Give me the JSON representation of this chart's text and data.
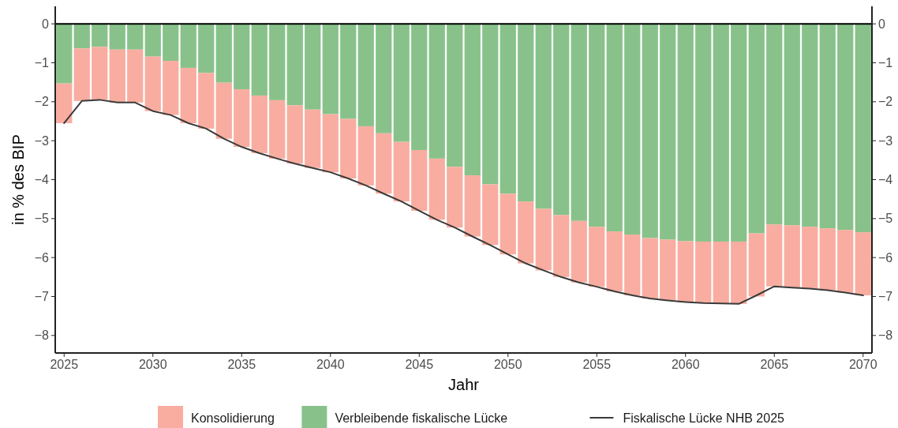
{
  "chart_data": {
    "type": "bar",
    "stacked": true,
    "xlabel": "Jahr",
    "ylabel": "in % des BIP",
    "x": [
      2025,
      2026,
      2027,
      2028,
      2029,
      2030,
      2031,
      2032,
      2033,
      2034,
      2035,
      2036,
      2037,
      2038,
      2039,
      2040,
      2041,
      2042,
      2043,
      2044,
      2045,
      2046,
      2047,
      2048,
      2049,
      2050,
      2051,
      2052,
      2053,
      2054,
      2055,
      2056,
      2057,
      2058,
      2059,
      2060,
      2061,
      2062,
      2063,
      2064,
      2065,
      2066,
      2067,
      2068,
      2069,
      2070
    ],
    "series": [
      {
        "name": "Verbleibende fiskalische Lücke",
        "color": "#88c28a",
        "values": [
          -1.53,
          -0.63,
          -0.59,
          -0.66,
          -0.66,
          -0.84,
          -0.95,
          -1.13,
          -1.26,
          -1.51,
          -1.68,
          -1.84,
          -1.96,
          -2.09,
          -2.2,
          -2.32,
          -2.44,
          -2.63,
          -2.81,
          -3.03,
          -3.24,
          -3.46,
          -3.67,
          -3.89,
          -4.12,
          -4.36,
          -4.56,
          -4.75,
          -4.91,
          -5.06,
          -5.21,
          -5.33,
          -5.41,
          -5.5,
          -5.54,
          -5.58,
          -5.59,
          -5.59,
          -5.59,
          -5.38,
          -5.15,
          -5.17,
          -5.21,
          -5.25,
          -5.29,
          -5.35
        ]
      },
      {
        "name": "Konsolidierung",
        "color": "#f8ada0",
        "values": [
          -1.02,
          -1.35,
          -1.36,
          -1.36,
          -1.36,
          -1.4,
          -1.39,
          -1.42,
          -1.43,
          -1.44,
          -1.48,
          -1.48,
          -1.5,
          -1.5,
          -1.5,
          -1.49,
          -1.53,
          -1.52,
          -1.55,
          -1.53,
          -1.56,
          -1.57,
          -1.56,
          -1.57,
          -1.56,
          -1.56,
          -1.59,
          -1.58,
          -1.59,
          -1.58,
          -1.54,
          -1.54,
          -1.56,
          -1.55,
          -1.56,
          -1.56,
          -1.58,
          -1.59,
          -1.6,
          -1.62,
          -1.59,
          -1.6,
          -1.59,
          -1.59,
          -1.61,
          -1.62
        ]
      },
      {
        "name": "Fiskalische Lücke NHB 2025",
        "type": "line",
        "color": "#3a3a3a",
        "values": [
          -2.55,
          -1.98,
          -1.95,
          -2.02,
          -2.02,
          -2.24,
          -2.34,
          -2.55,
          -2.69,
          -2.95,
          -3.16,
          -3.32,
          -3.46,
          -3.59,
          -3.7,
          -3.81,
          -3.97,
          -4.15,
          -4.36,
          -4.56,
          -4.8,
          -5.03,
          -5.23,
          -5.46,
          -5.68,
          -5.92,
          -6.15,
          -6.33,
          -6.5,
          -6.64,
          -6.75,
          -6.87,
          -6.97,
          -7.05,
          -7.1,
          -7.14,
          -7.17,
          -7.18,
          -7.19,
          -6.97,
          -6.74,
          -6.77,
          -6.8,
          -6.84,
          -6.9,
          -6.97
        ]
      }
    ],
    "xlim": [
      2024.5,
      2070.5
    ],
    "xticks": [
      2025,
      2030,
      2035,
      2040,
      2045,
      2050,
      2055,
      2060,
      2065,
      2070
    ],
    "ylim": [
      -8.45,
      0.45
    ],
    "yticks": [
      0,
      {
        "value": -1,
        "label": "−1"
      },
      {
        "value": -2,
        "label": "−2"
      },
      {
        "value": -3,
        "label": "−3"
      },
      {
        "value": -4,
        "label": "−4"
      },
      {
        "value": -5,
        "label": "−5"
      },
      {
        "value": -6,
        "label": "−6"
      },
      {
        "value": -7,
        "label": "−7"
      },
      {
        "value": -8,
        "label": "−8"
      }
    ],
    "y2lim": [
      -8.45,
      0.45
    ],
    "y2ticks": [
      0,
      {
        "value": -1,
        "label": "−1"
      },
      {
        "value": -2,
        "label": "−2"
      },
      {
        "value": -3,
        "label": "−3"
      },
      {
        "value": -4,
        "label": "−4"
      },
      {
        "value": -5,
        "label": "−5"
      },
      {
        "value": -6,
        "label": "−6"
      },
      {
        "value": -7,
        "label": "−7"
      },
      {
        "value": -8,
        "label": "−8"
      }
    ],
    "ref_lines": [
      {
        "axis": "y",
        "value": 0,
        "color": "#000000"
      }
    ],
    "grid": false,
    "legend": "bottom"
  }
}
